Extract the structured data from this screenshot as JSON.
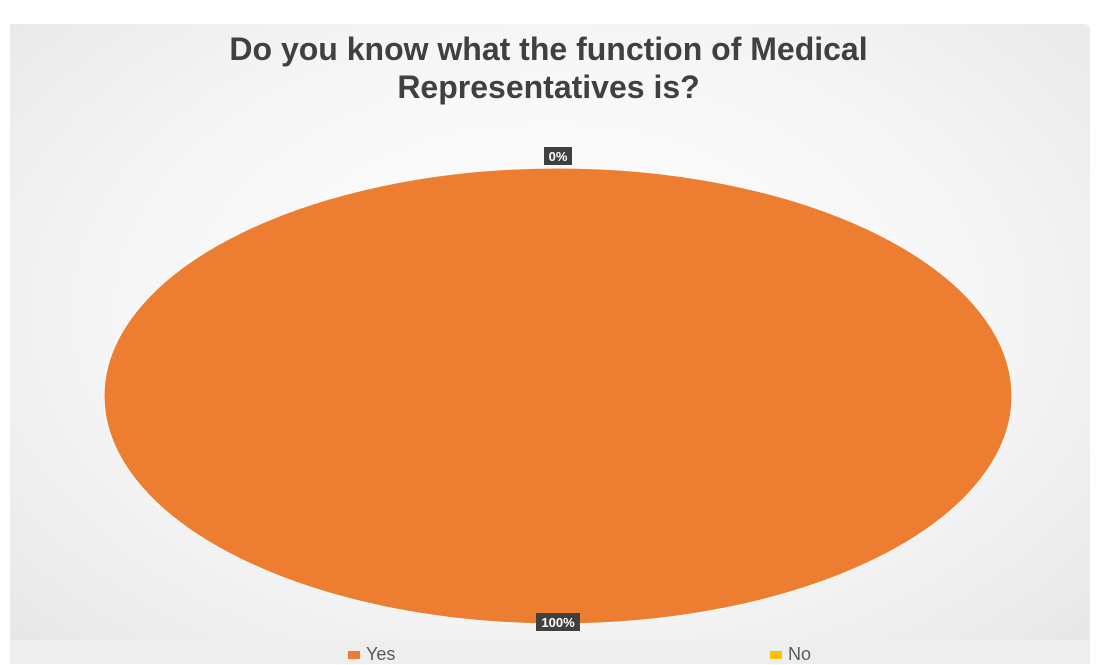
{
  "chart_data": {
    "type": "pie",
    "title": "Do you know what the function of Medical\nRepresentatives   is?",
    "categories": [
      "Yes",
      "No"
    ],
    "values": [
      100,
      0
    ],
    "data_labels": [
      "100%",
      "0%"
    ],
    "colors": [
      "#ED7D31",
      "#FFC000"
    ],
    "legend": "bottom"
  }
}
